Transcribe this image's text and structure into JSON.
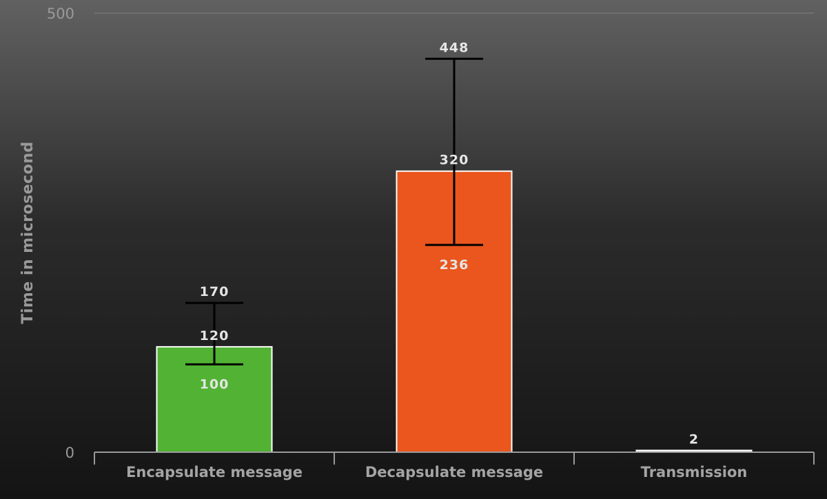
{
  "chart_data": {
    "type": "bar",
    "title": "",
    "xlabel": "",
    "ylabel": "Time in microsecond",
    "ylim": [
      0,
      500
    ],
    "yticks": [
      0,
      500
    ],
    "grid": true,
    "categories": [
      "Encapsulate message",
      "Decapsulate message",
      "Transmission"
    ],
    "values": [
      120,
      320,
      2
    ],
    "value_labels": [
      "120",
      "320",
      "2"
    ],
    "error_low": [
      100,
      236,
      null
    ],
    "error_high": [
      170,
      448,
      null
    ],
    "error_low_labels": [
      "100",
      "236",
      ""
    ],
    "error_high_labels": [
      "170",
      "448",
      ""
    ],
    "colors": [
      "#51b233",
      "#ea561e",
      "#f2f2f2"
    ],
    "bar_border_color": "#ffffff",
    "error_bar_color": "#000000",
    "axis_color": "#9a9a9a"
  }
}
